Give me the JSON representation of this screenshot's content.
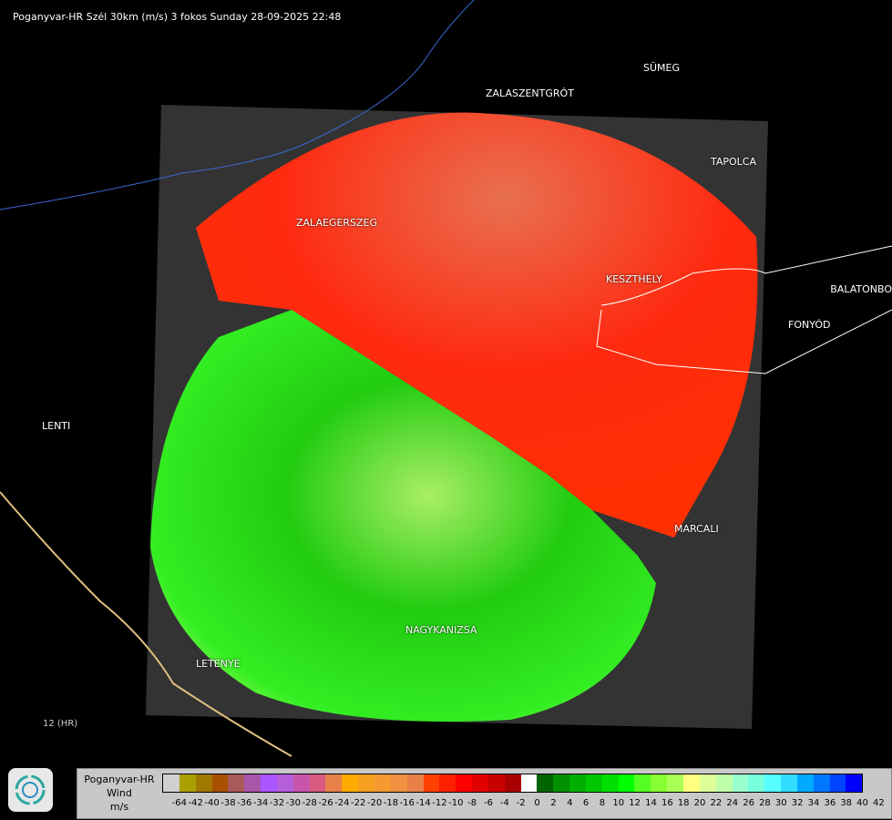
{
  "title": "Poganyvar-HR Szél 30km (m/s) 3 fokos Sunday 28-09-2025 22:48",
  "places": [
    {
      "name": "SÜMEG"
    },
    {
      "name": "ZALASZENTGRÓT"
    },
    {
      "name": "TAPOLCA"
    },
    {
      "name": "ZALAEGERSZEG"
    },
    {
      "name": "KESZTHELY"
    },
    {
      "name": "BALATONBO"
    },
    {
      "name": "FONYÓD"
    },
    {
      "name": "LENTI"
    },
    {
      "name": "MARCALI"
    },
    {
      "name": "NAGYKANIZSA"
    },
    {
      "name": "LETENYE"
    },
    {
      "name": "12 (HR)"
    }
  ],
  "legend": {
    "line1": "Poganyvar-HR",
    "line2": "Wind",
    "line3": "m/s",
    "colors": [
      "#d0d0d0",
      "#aaa000",
      "#a07800",
      "#a85000",
      "#a85a5a",
      "#a855aa",
      "#aa55ff",
      "#b55fdd",
      "#c855aa",
      "#d85a80",
      "#e8804a",
      "#ffaa00",
      "#f5a020",
      "#f59a30",
      "#f09040",
      "#e88048",
      "#ff4000",
      "#ff2000",
      "#ff0000",
      "#e00000",
      "#c80000",
      "#a80000",
      "#ffffff",
      "#006400",
      "#009000",
      "#00b000",
      "#00c800",
      "#00e000",
      "#00ff00",
      "#55ff22",
      "#88ff33",
      "#aaff55",
      "#ffff80",
      "#ddff99",
      "#c0ffaa",
      "#99ffcc",
      "#77ffdd",
      "#55ffff",
      "#33ddff",
      "#00aaff",
      "#0077ff",
      "#0044ff",
      "#0000ff"
    ],
    "ticks": [
      "-64",
      "-42",
      "-40",
      "-38",
      "-36",
      "-34",
      "-32",
      "-30",
      "-28",
      "-26",
      "-24",
      "-22",
      "-20",
      "-18",
      "-16",
      "-14",
      "-12",
      "-10",
      "-8",
      "-6",
      "-4",
      "-2",
      "0",
      "2",
      "4",
      "6",
      "8",
      "10",
      "12",
      "14",
      "16",
      "18",
      "20",
      "22",
      "24",
      "26",
      "28",
      "30",
      "32",
      "34",
      "36",
      "38",
      "40",
      "42"
    ]
  }
}
